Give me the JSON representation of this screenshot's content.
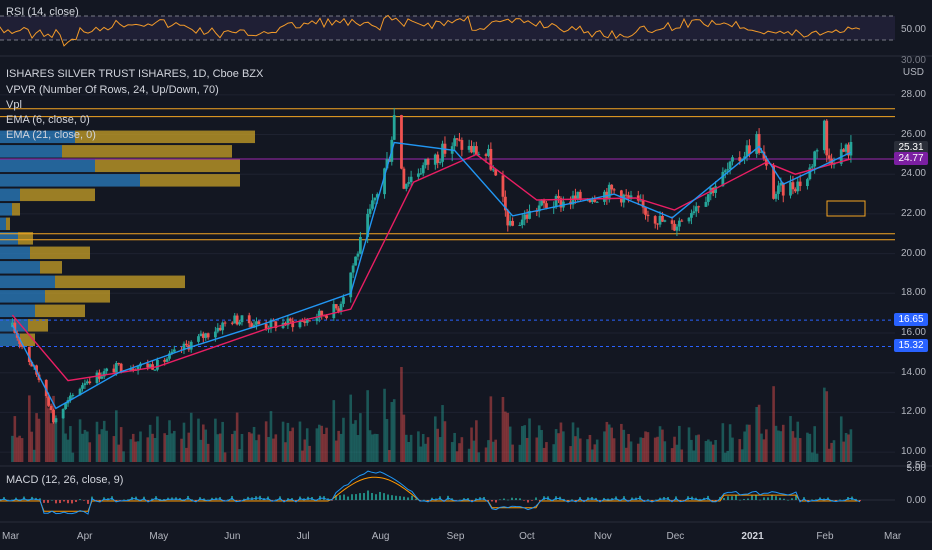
{
  "colors": {
    "bg": "#131722",
    "grid": "#1e2230",
    "up": "#26a69a",
    "down": "#ef5350",
    "rsi": "#f29a2a",
    "ema_fast": "#2196f3",
    "ema_slow": "#e91e63",
    "hline_orange": "#f5a623",
    "hline_purple": "#9c27b0",
    "vp_up": "#2b7fc1",
    "vp_down": "#c9a227",
    "macd": "#2196f3",
    "signal": "#ff9800"
  },
  "rsi_panel": {
    "title": "RSI (14, close)",
    "levels": [
      "50.00"
    ],
    "top_label": "30.00"
  },
  "header": {
    "symbol": "ISHARES SILVER TRUST ISHARES, 1D, Cboe BZX",
    "currency": "USD",
    "indicators": [
      "VPVR (Number Of Rows, 24, Up/Down, 70)",
      "Vpl",
      "EMA (6, close, 0)",
      "EMA (21, close, 0)"
    ]
  },
  "price_axis": {
    "ticks": [
      "28.00",
      "26.00",
      "24.00",
      "22.00",
      "20.00",
      "18.00",
      "16.00",
      "14.00",
      "12.00",
      "10.00"
    ]
  },
  "price_tags": [
    {
      "label": "25.31",
      "color": "#2a2e39"
    },
    {
      "label": "24.77",
      "color": "#7b1fa2"
    },
    {
      "label": "16.65",
      "color": "#2962ff"
    },
    {
      "label": "15.32",
      "color": "#2962ff"
    }
  ],
  "volume_axis": {
    "label": "2.50"
  },
  "macd_panel": {
    "title": "MACD (12, 26, close, 9)",
    "ticks": [
      "5.00",
      "0.00"
    ]
  },
  "time_axis": {
    "labels": [
      "Mar",
      "Apr",
      "May",
      "Jun",
      "Jul",
      "Aug",
      "Sep",
      "Oct",
      "Nov",
      "Dec",
      "2021",
      "Feb",
      "Mar"
    ]
  },
  "chart_data": {
    "type": "candlestick",
    "title": "ISHARES SILVER TRUST ISHARES, 1D, Cboe BZX",
    "y_axis": {
      "range": [
        9.5,
        29
      ],
      "unit": "USD"
    },
    "x_axis": {
      "range": [
        "2020-03",
        "2021-03"
      ]
    },
    "close_path": [
      {
        "date": "2020-03-02",
        "close": 16.3
      },
      {
        "date": "2020-03-16",
        "close": 13.0
      },
      {
        "date": "2020-03-19",
        "close": 11.6
      },
      {
        "date": "2020-04-01",
        "close": 13.6
      },
      {
        "date": "2020-04-15",
        "close": 14.3
      },
      {
        "date": "2020-05-01",
        "close": 14.4
      },
      {
        "date": "2020-05-15",
        "close": 15.5
      },
      {
        "date": "2020-06-01",
        "close": 16.7
      },
      {
        "date": "2020-06-15",
        "close": 16.4
      },
      {
        "date": "2020-07-01",
        "close": 16.6
      },
      {
        "date": "2020-07-15",
        "close": 17.3
      },
      {
        "date": "2020-07-22",
        "close": 19.8
      },
      {
        "date": "2020-08-05",
        "close": 25.0
      },
      {
        "date": "2020-08-07",
        "close": 27.0
      },
      {
        "date": "2020-08-11",
        "close": 23.6
      },
      {
        "date": "2020-08-20",
        "close": 24.5
      },
      {
        "date": "2020-09-01",
        "close": 25.6
      },
      {
        "date": "2020-09-15",
        "close": 24.9
      },
      {
        "date": "2020-09-24",
        "close": 21.3
      },
      {
        "date": "2020-10-06",
        "close": 22.4
      },
      {
        "date": "2020-10-20",
        "close": 22.7
      },
      {
        "date": "2020-11-06",
        "close": 23.2
      },
      {
        "date": "2020-11-20",
        "close": 22.1
      },
      {
        "date": "2020-11-30",
        "close": 21.3
      },
      {
        "date": "2020-12-15",
        "close": 23.1
      },
      {
        "date": "2021-01-04",
        "close": 25.8
      },
      {
        "date": "2021-01-11",
        "close": 23.0
      },
      {
        "date": "2021-01-25",
        "close": 23.8
      },
      {
        "date": "2021-02-01",
        "close": 26.8
      },
      {
        "date": "2021-02-02",
        "close": 24.8
      },
      {
        "date": "2021-02-12",
        "close": 25.31
      }
    ],
    "ema_fast_path": [
      {
        "date": "2020-03-02",
        "value": 16.4
      },
      {
        "date": "2020-03-20",
        "value": 12.2
      },
      {
        "date": "2020-04-15",
        "value": 14.0
      },
      {
        "date": "2020-05-15",
        "value": 15.3
      },
      {
        "date": "2020-06-15",
        "value": 16.5
      },
      {
        "date": "2020-07-20",
        "value": 18.0
      },
      {
        "date": "2020-08-07",
        "value": 25.6
      },
      {
        "date": "2020-09-01",
        "value": 25.2
      },
      {
        "date": "2020-09-25",
        "value": 21.9
      },
      {
        "date": "2020-11-06",
        "value": 23.0
      },
      {
        "date": "2020-11-30",
        "value": 21.8
      },
      {
        "date": "2021-01-05",
        "value": 25.4
      },
      {
        "date": "2021-01-15",
        "value": 23.5
      },
      {
        "date": "2021-02-12",
        "value": 25.1
      }
    ],
    "ema_slow_path": [
      {
        "date": "2020-03-02",
        "value": 16.9
      },
      {
        "date": "2020-03-25",
        "value": 13.6
      },
      {
        "date": "2020-05-01",
        "value": 14.3
      },
      {
        "date": "2020-06-15",
        "value": 16.2
      },
      {
        "date": "2020-07-20",
        "value": 17.2
      },
      {
        "date": "2020-08-15",
        "value": 23.6
      },
      {
        "date": "2020-09-10",
        "value": 25.0
      },
      {
        "date": "2020-10-05",
        "value": 22.7
      },
      {
        "date": "2020-11-15",
        "value": 22.8
      },
      {
        "date": "2020-12-01",
        "value": 22.2
      },
      {
        "date": "2021-01-08",
        "value": 24.6
      },
      {
        "date": "2021-01-20",
        "value": 24.0
      },
      {
        "date": "2021-02-12",
        "value": 24.77
      }
    ],
    "horizontal_lines": [
      {
        "price": 27.3,
        "color": "#f5a623"
      },
      {
        "price": 26.9,
        "color": "#f5a623"
      },
      {
        "price": 24.77,
        "color": "#9c27b0"
      },
      {
        "price": 21.0,
        "color": "#f5a623"
      },
      {
        "price": 20.7,
        "color": "#f5a623"
      },
      {
        "price": 16.65,
        "color": "#2962ff",
        "dashed": true
      },
      {
        "price": 15.32,
        "color": "#2962ff",
        "dashed": true
      }
    ],
    "last_price": 25.31
  }
}
